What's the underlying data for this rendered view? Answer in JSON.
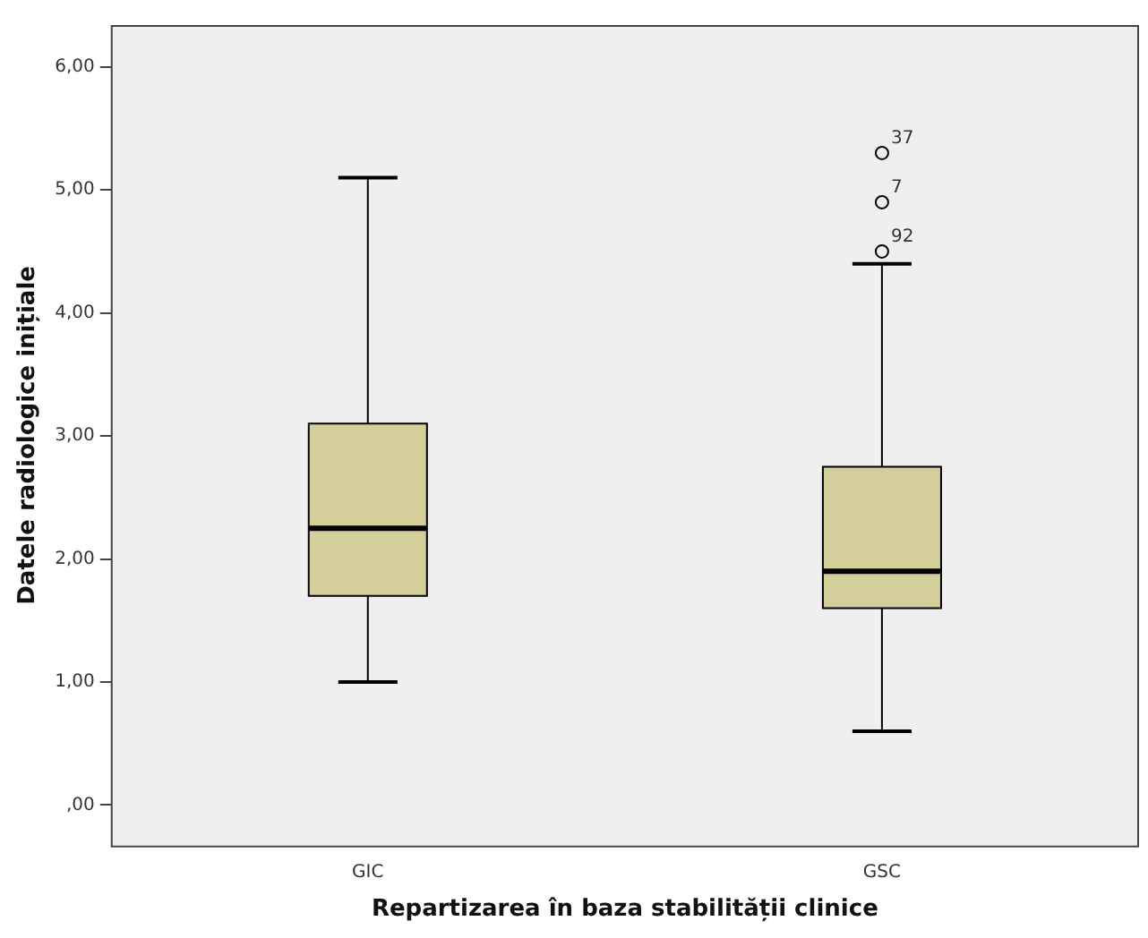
{
  "chart_data": {
    "type": "box",
    "xlabel": "Repartizarea în baza stabilității clinice",
    "ylabel": "Datele radiologice inițiale",
    "categories": [
      "GIC",
      "GSC"
    ],
    "color": "#d3ce9a",
    "boxes": [
      {
        "low": 1.0,
        "q1": 1.7,
        "median": 2.25,
        "q3": 3.1,
        "high": 5.1
      },
      {
        "low": 0.6,
        "q1": 1.6,
        "median": 1.9,
        "q3": 2.75,
        "high": 4.4,
        "outliers": [
          5.3,
          4.9,
          4.5
        ]
      }
    ],
    "ylim": [
      -0.33,
      6.34
    ],
    "yticks": [
      {
        "value": 0,
        "label": ",00"
      },
      {
        "value": 1,
        "label": "1,00"
      },
      {
        "value": 2,
        "label": "2,00"
      },
      {
        "value": 3,
        "label": "3,00"
      },
      {
        "value": 4,
        "label": "4,00"
      },
      {
        "value": 5,
        "label": "5,00"
      },
      {
        "value": 6,
        "label": "6,00"
      }
    ],
    "grid": false,
    "legend": false,
    "annotations": [
      "37",
      "7",
      "92"
    ]
  }
}
